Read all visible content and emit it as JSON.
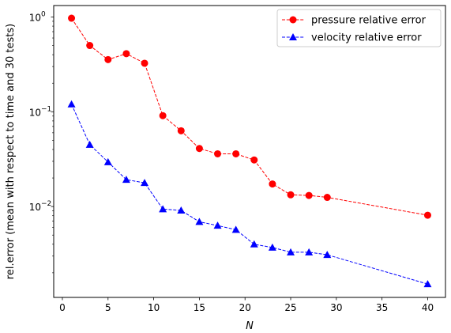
{
  "chart_data": {
    "type": "line",
    "title": "",
    "xlabel": "N",
    "ylabel": "rel.error (mean with respect to time and 30 tests)",
    "yscale": "log",
    "xlim": [
      -0.95,
      41.95
    ],
    "ylim": [
      0.0011,
      1.32
    ],
    "grid": false,
    "legend_position": "top-right",
    "x_ticks": [
      0,
      5,
      10,
      15,
      20,
      25,
      30,
      35,
      40
    ],
    "x_tick_labels": [
      "0",
      "5",
      "10",
      "15",
      "20",
      "25",
      "30",
      "35",
      "40"
    ],
    "y_ticks": [
      0.01,
      0.1,
      1
    ],
    "y_tick_labels": [
      [
        "10",
        "−2"
      ],
      [
        "10",
        "−1"
      ],
      [
        "10",
        "0"
      ]
    ],
    "series": [
      {
        "name": "pressure relative error",
        "color": "#ff0000",
        "marker": "circle",
        "line_style": "dashed",
        "x": [
          1,
          3,
          5,
          7,
          9,
          11,
          13,
          15,
          17,
          19,
          21,
          23,
          25,
          27,
          29,
          40
        ],
        "y": [
          0.97,
          0.5,
          0.355,
          0.41,
          0.325,
          0.091,
          0.063,
          0.041,
          0.036,
          0.036,
          0.031,
          0.0173,
          0.0133,
          0.0131,
          0.0125,
          0.0081
        ]
      },
      {
        "name": "velocity relative error",
        "color": "#0000ff",
        "marker": "triangle",
        "line_style": "dashed",
        "x": [
          1,
          3,
          5,
          7,
          9,
          11,
          13,
          15,
          17,
          19,
          21,
          23,
          25,
          27,
          29,
          40
        ],
        "y": [
          0.12,
          0.045,
          0.0295,
          0.0192,
          0.0178,
          0.0094,
          0.0091,
          0.0069,
          0.0063,
          0.0057,
          0.004,
          0.0037,
          0.0033,
          0.0033,
          0.0031,
          0.00152
        ]
      }
    ]
  }
}
